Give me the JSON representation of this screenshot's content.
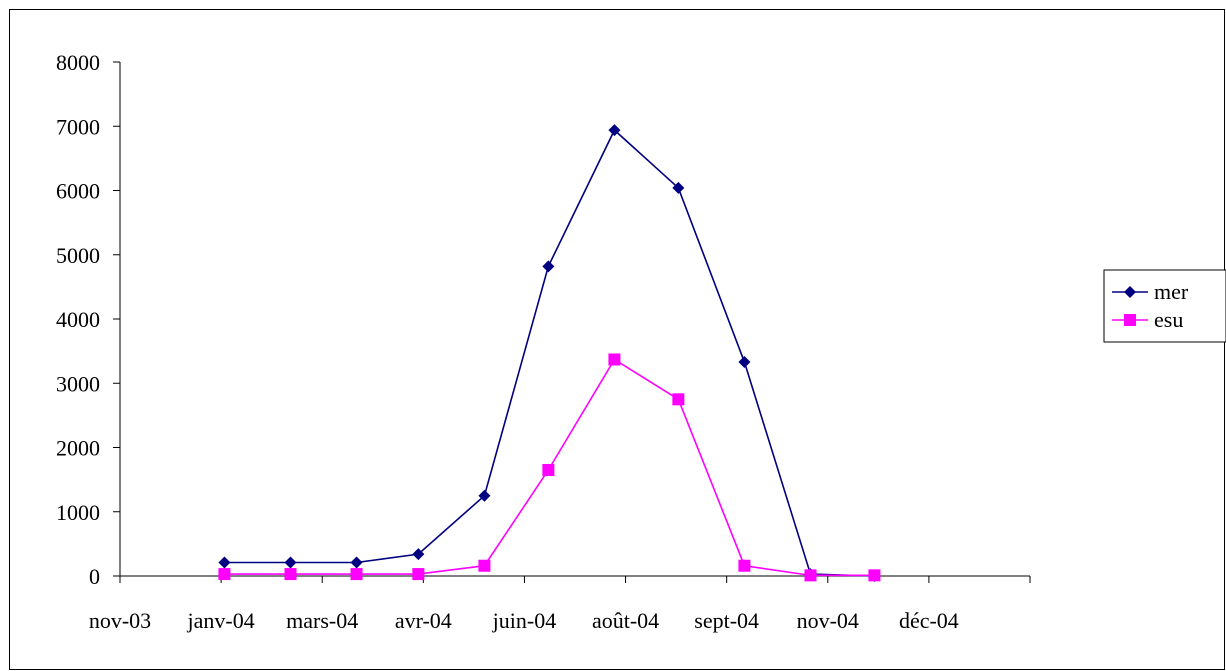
{
  "chart_data": {
    "type": "line",
    "title": "",
    "xlabel": "",
    "ylabel": "",
    "ylim": [
      0,
      8000
    ],
    "yticks": [
      "0",
      "1000",
      "2000",
      "3000",
      "4000",
      "5000",
      "6000",
      "7000",
      "8000"
    ],
    "x_tick_labels": [
      "nov-03",
      "janv-04",
      "mars-04",
      "avr-04",
      "juin-04",
      "août-04",
      "sept-04",
      "nov-04",
      "déc-04"
    ],
    "x": [
      "2003-12-20",
      "2004-01-20",
      "2004-02-20",
      "2004-03-20",
      "2004-04-20",
      "2004-05-20",
      "2004-06-20",
      "2004-07-20",
      "2004-08-20",
      "2004-09-20",
      "2004-10-20"
    ],
    "series": [
      {
        "name": "mer",
        "color": "#000080",
        "marker": "diamond",
        "values": [
          210,
          210,
          210,
          340,
          1250,
          4820,
          6940,
          6040,
          3330,
          30,
          0
        ]
      },
      {
        "name": "esu",
        "color": "#ff00ff",
        "marker": "square",
        "values": [
          30,
          30,
          30,
          30,
          160,
          1650,
          3370,
          2750,
          160,
          10,
          10
        ]
      }
    ],
    "grid": false,
    "legend": "right"
  }
}
